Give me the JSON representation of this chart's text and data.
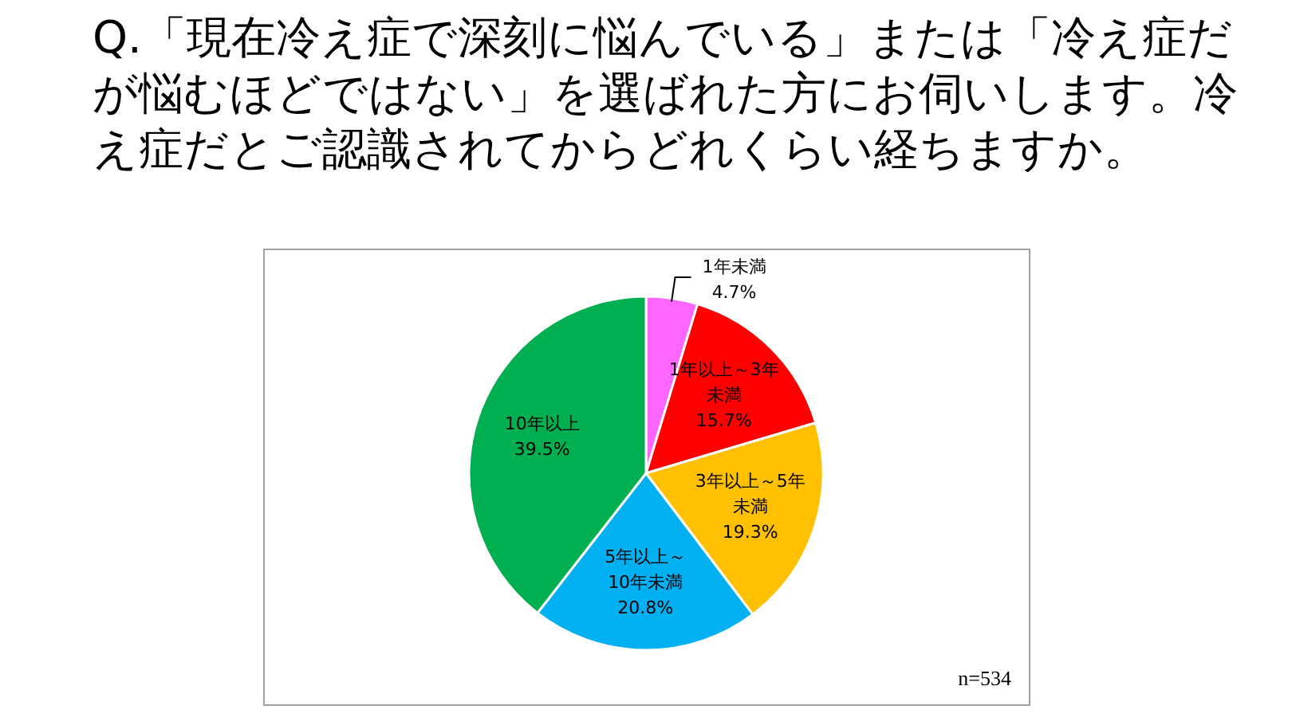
{
  "chart_data": {
    "type": "pie",
    "title": "Q.「現在冷え症で深刻に悩んでいる」または「冷え症だが悩むほどではない」を選ばれた方にお伺いします。冷え症だとご認識されてからどれくらい経ちますか。",
    "categories": [
      "1年未満",
      "1年以上～3年未満",
      "3年以上～5年未満",
      "5年以上～10年未満",
      "10年以上"
    ],
    "values": [
      4.7,
      15.7,
      19.3,
      20.8,
      39.5
    ],
    "value_labels": [
      "4.7%",
      "15.7%",
      "19.3%",
      "20.8%",
      "39.5%"
    ],
    "colors": [
      "#ff66ff",
      "#ff0000",
      "#ffc000",
      "#00b0f0",
      "#00b050"
    ],
    "annotations": [
      "n=534"
    ]
  }
}
